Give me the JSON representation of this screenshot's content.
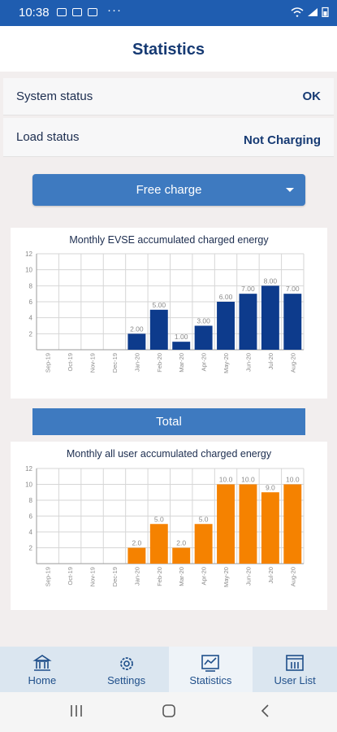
{
  "status_bar": {
    "time": "10:38",
    "more": "···"
  },
  "header": {
    "title": "Statistics"
  },
  "status": {
    "system_label": "System status",
    "system_value": "OK",
    "load_label": "Load status",
    "load_value": "Not Charging"
  },
  "dropdown": {
    "selected": "Free charge"
  },
  "total_label": "Total",
  "colors": {
    "primary": "#1f5db0",
    "button": "#3e7ac0",
    "chart_blue": "#0d3b8c",
    "chart_orange": "#f58200"
  },
  "nav": {
    "items": [
      "Home",
      "Settings",
      "Statistics",
      "User List"
    ],
    "active": "Statistics"
  },
  "chart_data": [
    {
      "type": "bar",
      "title": "Monthly EVSE accumulated charged energy",
      "categories": [
        "Sep-19",
        "Oct-19",
        "Nov-19",
        "Dec-19",
        "Jan-20",
        "Feb-20",
        "Mar-20",
        "Apr-20",
        "May-20",
        "Jun-20",
        "Jul-20",
        "Aug-20"
      ],
      "values": [
        0,
        0,
        0,
        0,
        2.0,
        5.0,
        1.0,
        3.0,
        6.0,
        7.0,
        8.0,
        7.0
      ],
      "value_labels": [
        "",
        "",
        "",
        "",
        "2.00",
        "5.00",
        "1.00",
        "3.00",
        "6.00",
        "7.00",
        "8.00",
        "7.00"
      ],
      "ylim": [
        0,
        12
      ],
      "yticks": [
        2,
        4,
        6,
        8,
        10,
        12
      ],
      "grid": true,
      "color": "#0d3b8c"
    },
    {
      "type": "bar",
      "title": "Monthly all user accumulated charged energy",
      "categories": [
        "Sep-19",
        "Oct-19",
        "Nov-19",
        "Dec-19",
        "Jan-20",
        "Feb-20",
        "Mar-20",
        "Apr-20",
        "May-20",
        "Jun-20",
        "Jul-20",
        "Aug-20"
      ],
      "values": [
        0,
        0,
        0,
        0,
        2.0,
        5.0,
        2.0,
        5.0,
        10.0,
        10.0,
        9.0,
        10.0
      ],
      "value_labels": [
        "",
        "",
        "",
        "",
        "2.0",
        "5.0",
        "2.0",
        "5.0",
        "10.0",
        "10.0",
        "9.0",
        "10.0"
      ],
      "ylim": [
        0,
        12
      ],
      "yticks": [
        2,
        4,
        6,
        8,
        10,
        12
      ],
      "grid": true,
      "color": "#f58200"
    }
  ]
}
